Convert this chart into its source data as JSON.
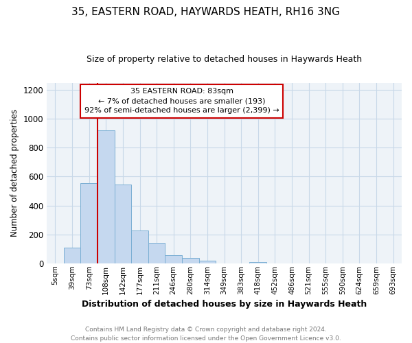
{
  "title1": "35, EASTERN ROAD, HAYWARDS HEATH, RH16 3NG",
  "title2": "Size of property relative to detached houses in Haywards Heath",
  "xlabel": "Distribution of detached houses by size in Haywards Heath",
  "ylabel": "Number of detached properties",
  "categories": [
    "5sqm",
    "39sqm",
    "73sqm",
    "108sqm",
    "142sqm",
    "177sqm",
    "211sqm",
    "246sqm",
    "280sqm",
    "314sqm",
    "349sqm",
    "383sqm",
    "418sqm",
    "452sqm",
    "486sqm",
    "521sqm",
    "555sqm",
    "590sqm",
    "624sqm",
    "659sqm",
    "693sqm"
  ],
  "values": [
    0,
    110,
    555,
    920,
    545,
    225,
    140,
    55,
    35,
    20,
    0,
    0,
    8,
    0,
    0,
    0,
    0,
    0,
    0,
    0,
    0
  ],
  "bar_color": "#c5d8ef",
  "bar_edge_color": "#7bafd4",
  "annotation_box_text": "35 EASTERN ROAD: 83sqm\n← 7% of detached houses are smaller (193)\n92% of semi-detached houses are larger (2,399) →",
  "vline_color": "#cc0000",
  "box_edge_color": "#cc0000",
  "footnote": "Contains HM Land Registry data © Crown copyright and database right 2024.\nContains public sector information licensed under the Open Government Licence v3.0.",
  "ylim": [
    0,
    1250
  ],
  "yticks": [
    0,
    200,
    400,
    600,
    800,
    1000,
    1200
  ],
  "grid_color": "#c8d8e8",
  "background_color": "#eef3f8"
}
